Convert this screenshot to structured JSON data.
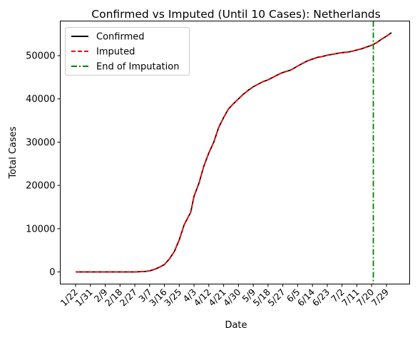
{
  "chart_data": {
    "type": "line",
    "title": "Confirmed vs Imputed (Until 10 Cases): Netherlands",
    "xlabel": "Date",
    "ylabel": "Total Cases",
    "ylim": [
      -2800,
      58000
    ],
    "yticks": [
      0,
      10000,
      20000,
      30000,
      40000,
      50000
    ],
    "xticks": [
      "1/22",
      "1/31",
      "2/9",
      "2/18",
      "2/27",
      "3/7",
      "3/16",
      "3/25",
      "4/3",
      "4/12",
      "4/21",
      "4/30",
      "5/9",
      "5/18",
      "5/27",
      "6/5",
      "6/14",
      "6/23",
      "7/2",
      "7/11",
      "7/20",
      "7/29"
    ],
    "tick_step_days": 9,
    "grid": false,
    "legend_position": "top-left",
    "series": [
      {
        "name": "Confirmed",
        "color": "#000000",
        "style": "solid",
        "points": [
          [
            "1/22",
            0
          ],
          [
            "1/31",
            0
          ],
          [
            "2/9",
            0
          ],
          [
            "2/18",
            0
          ],
          [
            "2/27",
            0
          ],
          [
            "3/4",
            100
          ],
          [
            "3/7",
            250
          ],
          [
            "3/10",
            600
          ],
          [
            "3/13",
            1100
          ],
          [
            "3/16",
            1700
          ],
          [
            "3/19",
            3000
          ],
          [
            "3/22",
            4700
          ],
          [
            "3/25",
            7400
          ],
          [
            "3/28",
            10900
          ],
          [
            "4/1",
            13800
          ],
          [
            "4/3",
            17500
          ],
          [
            "4/6",
            20500
          ],
          [
            "4/9",
            24500
          ],
          [
            "4/12",
            27500
          ],
          [
            "4/15",
            30000
          ],
          [
            "4/18",
            33400
          ],
          [
            "4/21",
            35700
          ],
          [
            "4/24",
            37700
          ],
          [
            "4/27",
            38900
          ],
          [
            "4/30",
            40000
          ],
          [
            "5/3",
            41100
          ],
          [
            "5/6",
            42000
          ],
          [
            "5/9",
            42800
          ],
          [
            "5/12",
            43400
          ],
          [
            "5/15",
            44000
          ],
          [
            "5/18",
            44400
          ],
          [
            "5/21",
            45000
          ],
          [
            "5/24",
            45600
          ],
          [
            "5/27",
            46100
          ],
          [
            "6/1",
            46700
          ],
          [
            "6/5",
            47600
          ],
          [
            "6/8",
            48200
          ],
          [
            "6/11",
            48800
          ],
          [
            "6/14",
            49200
          ],
          [
            "6/17",
            49600
          ],
          [
            "6/20",
            49800
          ],
          [
            "6/23",
            50100
          ],
          [
            "6/26",
            50300
          ],
          [
            "6/29",
            50500
          ],
          [
            "7/2",
            50700
          ],
          [
            "7/5",
            50800
          ],
          [
            "7/8",
            51000
          ],
          [
            "7/11",
            51300
          ],
          [
            "7/14",
            51600
          ],
          [
            "7/17",
            52000
          ],
          [
            "7/20",
            52400
          ],
          [
            "7/23",
            53000
          ],
          [
            "7/26",
            53800
          ],
          [
            "7/29",
            54500
          ],
          [
            "8/1",
            55300
          ]
        ]
      },
      {
        "name": "Imputed",
        "color": "#ff0000",
        "style": "dashed",
        "points": [
          [
            "1/22",
            0
          ],
          [
            "1/31",
            0
          ],
          [
            "2/9",
            0
          ],
          [
            "2/18",
            0
          ],
          [
            "2/27",
            0
          ],
          [
            "3/4",
            100
          ],
          [
            "3/7",
            250
          ],
          [
            "3/10",
            600
          ],
          [
            "3/13",
            1100
          ],
          [
            "3/16",
            1700
          ],
          [
            "3/19",
            3000
          ],
          [
            "3/22",
            4700
          ],
          [
            "3/25",
            7400
          ],
          [
            "3/28",
            10900
          ],
          [
            "4/1",
            13800
          ],
          [
            "4/3",
            17500
          ],
          [
            "4/6",
            20500
          ],
          [
            "4/9",
            24500
          ],
          [
            "4/12",
            27500
          ],
          [
            "4/15",
            30000
          ],
          [
            "4/18",
            33400
          ],
          [
            "4/21",
            35700
          ],
          [
            "4/24",
            37700
          ],
          [
            "4/27",
            38900
          ],
          [
            "4/30",
            40000
          ],
          [
            "5/3",
            41100
          ],
          [
            "5/6",
            42000
          ],
          [
            "5/9",
            42800
          ],
          [
            "5/12",
            43400
          ],
          [
            "5/15",
            44000
          ],
          [
            "5/18",
            44400
          ],
          [
            "5/21",
            45000
          ],
          [
            "5/24",
            45600
          ],
          [
            "5/27",
            46100
          ],
          [
            "6/1",
            46700
          ],
          [
            "6/5",
            47600
          ],
          [
            "6/8",
            48200
          ],
          [
            "6/11",
            48800
          ],
          [
            "6/14",
            49200
          ],
          [
            "6/17",
            49600
          ],
          [
            "6/20",
            49800
          ],
          [
            "6/23",
            50100
          ],
          [
            "6/26",
            50300
          ],
          [
            "6/29",
            50500
          ],
          [
            "7/2",
            50700
          ],
          [
            "7/5",
            50800
          ],
          [
            "7/8",
            51000
          ],
          [
            "7/11",
            51300
          ],
          [
            "7/14",
            51600
          ],
          [
            "7/17",
            52000
          ],
          [
            "7/20",
            52400
          ],
          [
            "7/23",
            53000
          ],
          [
            "7/26",
            53800
          ],
          [
            "7/29",
            54500
          ],
          [
            "8/1",
            55300
          ]
        ]
      }
    ],
    "vlines": [
      {
        "name": "End of Imputation",
        "x": "7/21",
        "color": "#008000",
        "style": "dashdot"
      }
    ]
  }
}
